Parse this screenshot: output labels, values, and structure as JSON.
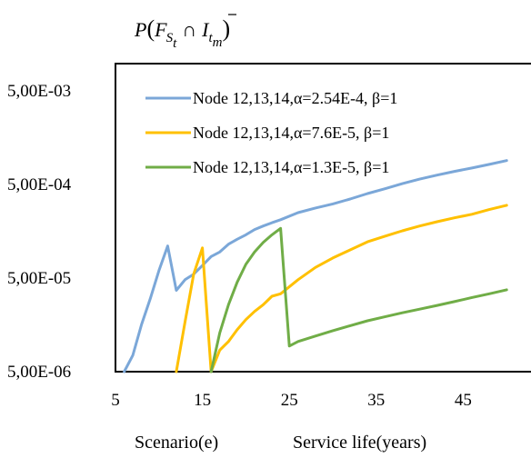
{
  "chart_data": {
    "type": "line",
    "title": "P(F_{S_t} ∩ Ī_{t_m})",
    "title_parts": {
      "P": "P",
      "F": "F",
      "S": "S",
      "t": "t",
      "cap": "∩",
      "I": "I",
      "tm_t": "t",
      "tm_m": "m"
    },
    "xlabel_left": "Scenario(e)",
    "xlabel_right": "Service life(years)",
    "y_scale": "log",
    "ylim": [
      5e-06,
      0.005
    ],
    "xlim": [
      5,
      50
    ],
    "x_ticks": [
      "5",
      "15",
      "25",
      "35",
      "45"
    ],
    "y_ticks": [
      "5,00E-03",
      "5,00E-04",
      "5,00E-05",
      "5,00E-06"
    ],
    "grid": false,
    "legend_position": "top-left",
    "series": [
      {
        "name": "Node 12,13,14,α=2.54E-4, β=1",
        "color": "#7ba7d8",
        "x": [
          6,
          7,
          8,
          9,
          10,
          11,
          12,
          13,
          14,
          15,
          16,
          17,
          18,
          19,
          20,
          21,
          22,
          23,
          24,
          26,
          28,
          30,
          32,
          34,
          36,
          38,
          40,
          42,
          44,
          46,
          48,
          50
        ],
        "y": [
          5e-06,
          7.5e-06,
          1.6e-05,
          3e-05,
          6e-05,
          0.00011,
          3.7e-05,
          4.8e-05,
          5.5e-05,
          6.8e-05,
          8.5e-05,
          9.5e-05,
          0.000115,
          0.00013,
          0.000145,
          0.000165,
          0.00018,
          0.000195,
          0.00021,
          0.00025,
          0.00028,
          0.00031,
          0.00035,
          0.0004,
          0.00045,
          0.00051,
          0.00057,
          0.00063,
          0.00069,
          0.00075,
          0.00082,
          0.0009
        ]
      },
      {
        "name": "Node 12,13,14,α=7.6E-5, β=1",
        "color": "#ffc000",
        "x": [
          12,
          13,
          14,
          15,
          16,
          17,
          18,
          19,
          20,
          21,
          22,
          23,
          24,
          26,
          28,
          30,
          32,
          34,
          36,
          38,
          40,
          42,
          44,
          46,
          48,
          50
        ],
        "y": [
          5e-06,
          1.7e-05,
          5.5e-05,
          0.000105,
          5e-06,
          8.5e-06,
          1.05e-05,
          1.4e-05,
          1.8e-05,
          2.2e-05,
          2.6e-05,
          3.2e-05,
          3.4e-05,
          4.8e-05,
          6.5e-05,
          8.2e-05,
          0.0001,
          0.000122,
          0.00014,
          0.00016,
          0.00018,
          0.0002,
          0.00022,
          0.00024,
          0.00027,
          0.0003
        ]
      },
      {
        "name": "Node 12,13,14,α=1.3E-5, β=1",
        "color": "#70ad47",
        "x": [
          16,
          17,
          18,
          19,
          20,
          21,
          22,
          23,
          24,
          25,
          26,
          28,
          30,
          32,
          34,
          36,
          38,
          40,
          42,
          44,
          46,
          48,
          50
        ],
        "y": [
          5e-06,
          1.3e-05,
          2.6e-05,
          4.5e-05,
          7e-05,
          9.5e-05,
          0.00012,
          0.000145,
          0.00017,
          9.4e-06,
          1.05e-05,
          1.2e-05,
          1.37e-05,
          1.55e-05,
          1.75e-05,
          1.93e-05,
          2.13e-05,
          2.33e-05,
          2.55e-05,
          2.8e-05,
          3.1e-05,
          3.4e-05,
          3.75e-05
        ]
      }
    ]
  }
}
